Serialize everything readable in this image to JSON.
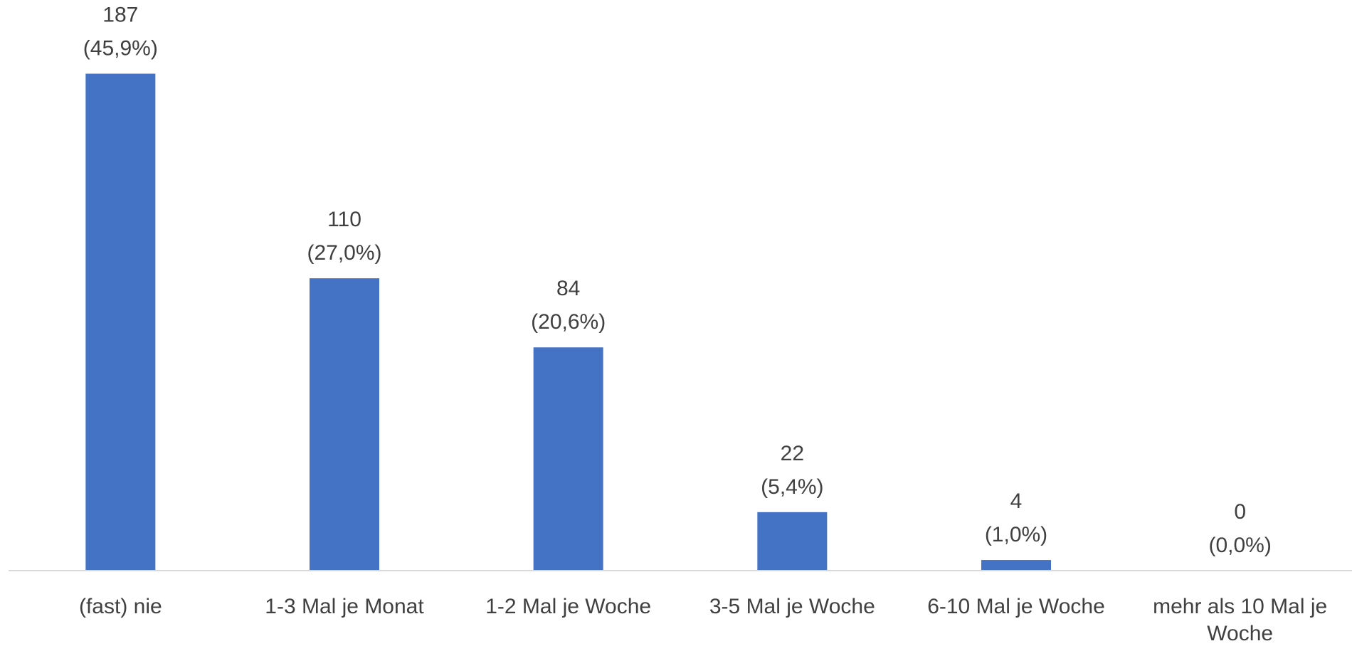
{
  "chart_data": {
    "type": "bar",
    "categories": [
      "(fast) nie",
      "1-3 Mal je Monat",
      "1-2 Mal je Woche",
      "3-5 Mal je Woche",
      "6-10 Mal je Woche",
      "mehr als 10 Mal je Woche"
    ],
    "values": [
      187,
      110,
      84,
      22,
      4,
      0
    ],
    "share_labels": [
      "(45,9%)",
      "(27,0%)",
      "(20,6%)",
      "(5,4%)",
      "(1,0%)",
      "(0,0%)"
    ],
    "color": "#4472c4",
    "ylim": [
      0,
      200
    ],
    "grid": false
  }
}
